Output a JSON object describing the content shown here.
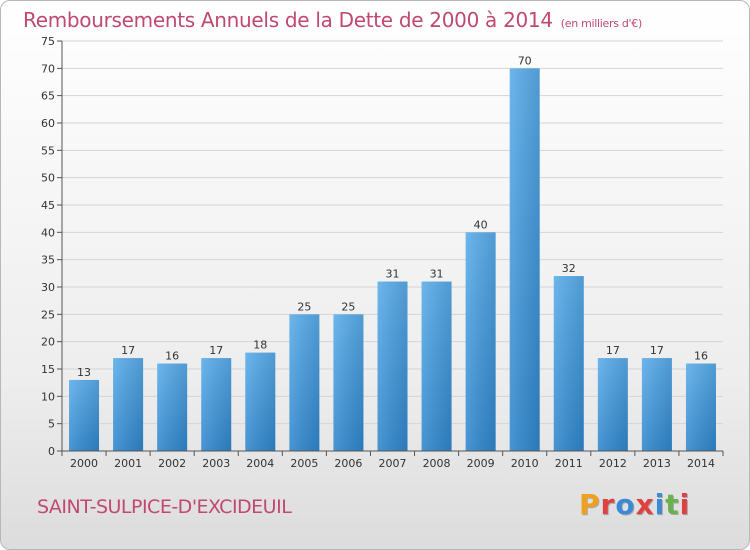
{
  "header": {
    "title": "Remboursements Annuels de la Dette de 2000 à 2014",
    "subtitle": "(en milliers d'€)"
  },
  "footer": {
    "commune": "SAINT-SULPICE-D'EXCIDEUIL",
    "logo": "Proxiti"
  },
  "colors": {
    "title": "#c0496f",
    "bar_top": "#5aacea",
    "bar_bottom": "#2f86cc",
    "logo_letters": [
      "#f0a020",
      "#e04040",
      "#3b8ad8",
      "#e04040",
      "#3b8ad8",
      "#6ab04c",
      "#e04040"
    ]
  },
  "chart_data": {
    "type": "bar",
    "categories": [
      "2000",
      "2001",
      "2002",
      "2003",
      "2004",
      "2005",
      "2006",
      "2007",
      "2008",
      "2009",
      "2010",
      "2011",
      "2012",
      "2013",
      "2014"
    ],
    "values": [
      13,
      17,
      16,
      17,
      18,
      25,
      25,
      31,
      31,
      40,
      70,
      32,
      17,
      17,
      16
    ],
    "ylim": [
      0,
      75
    ],
    "yticks": [
      0,
      5,
      10,
      15,
      20,
      25,
      30,
      35,
      40,
      45,
      50,
      55,
      60,
      65,
      70,
      75
    ],
    "grid": true,
    "data_labels": true
  }
}
